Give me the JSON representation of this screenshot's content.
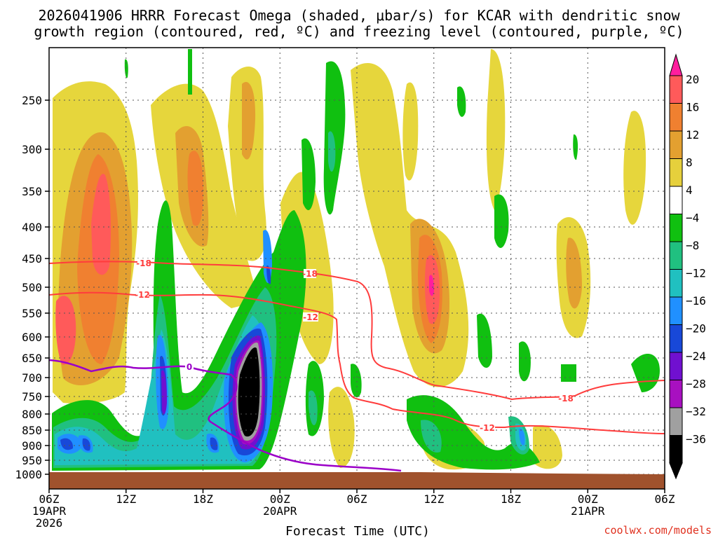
{
  "chart_data": {
    "type": "heatmap",
    "title_line1": "2026041906 HRRR Forecast Omega (shaded, μbar/s) for KCAR with dendritic snow",
    "title_line2": "growth region (contoured, red, ºC) and freezing level (contoured, purple, ºC)",
    "xlabel": "Forecast Time (UTC)",
    "credit": "coolwx.com/models",
    "y_ticks": [
      "250",
      "300",
      "350",
      "400",
      "450",
      "500",
      "550",
      "600",
      "650",
      "700",
      "750",
      "800",
      "850",
      "900",
      "950",
      "1000"
    ],
    "y_values": [
      250,
      300,
      350,
      400,
      450,
      500,
      550,
      600,
      650,
      700,
      750,
      800,
      850,
      900,
      950,
      1000
    ],
    "x_ticks": [
      {
        "hour": 0,
        "label": "06Z",
        "sub": "19APR",
        "sub2": "2026"
      },
      {
        "hour": 6,
        "label": "12Z",
        "sub": "",
        "sub2": ""
      },
      {
        "hour": 12,
        "label": "18Z",
        "sub": "",
        "sub2": ""
      },
      {
        "hour": 18,
        "label": "00Z",
        "sub": "20APR",
        "sub2": ""
      },
      {
        "hour": 24,
        "label": "06Z",
        "sub": "",
        "sub2": ""
      },
      {
        "hour": 30,
        "label": "12Z",
        "sub": "",
        "sub2": ""
      },
      {
        "hour": 36,
        "label": "18Z",
        "sub": "",
        "sub2": ""
      },
      {
        "hour": 42,
        "label": "00Z",
        "sub": "21APR",
        "sub2": ""
      },
      {
        "hour": 48,
        "label": "06Z",
        "sub": "",
        "sub2": ""
      }
    ],
    "xlim": [
      0,
      48
    ],
    "ylim_hpa": [
      200,
      1020
    ],
    "colorbar": {
      "labels": [
        "20",
        "16",
        "12",
        "8",
        "4",
        "−4",
        "−8",
        "−12",
        "−16",
        "−20",
        "−24",
        "−28",
        "−32",
        "−36"
      ],
      "colors": [
        "#ff5a5a",
        "#f08030",
        "#e3a030",
        "#e6d03c",
        "#ffffff",
        "#10c010",
        "#20c080",
        "#20c0c0",
        "#2090ff",
        "#1848d8",
        "#7010d0",
        "#a810c0",
        "#a0a0a0",
        "#000000"
      ],
      "top_color": "#ff1e9e",
      "bottom_color": "#000000"
    },
    "contours": [
      {
        "label": "-18",
        "color": "#ff3c3c",
        "value": -18
      },
      {
        "label": "-12",
        "color": "#ff3c3c",
        "value": -12
      },
      {
        "label": "0",
        "color": "#9b00c8",
        "value": 0
      }
    ],
    "ground_color": "#a0522d"
  }
}
